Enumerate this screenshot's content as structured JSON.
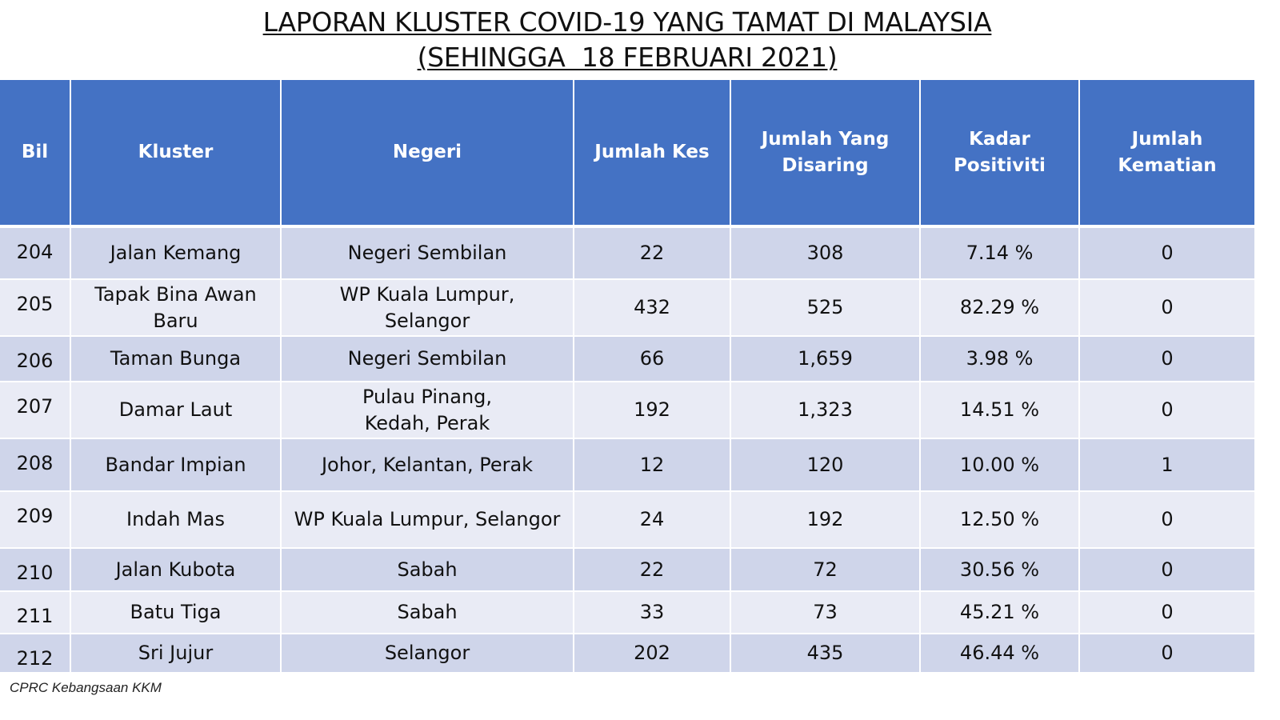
{
  "title": {
    "line1": "LAPORAN KLUSTER COVID-19 YANG TAMAT DI MALAYSIA",
    "line2": "(SEHINGGA  18 FEBRUARI 2021)"
  },
  "table": {
    "headers": {
      "bil": "Bil",
      "kluster": "Kluster",
      "negeri": "Negeri",
      "jumlah_kes": "Jumlah Kes",
      "jumlah_disaring_1": "Jumlah Yang",
      "jumlah_disaring_2": "Disaring",
      "kadar_positiviti": "Kadar Positiviti",
      "jumlah_kematian": "Jumlah Kematian"
    },
    "rows": [
      {
        "bil": "204",
        "kluster": "Jalan Kemang",
        "negeri_1": "Negeri Sembilan",
        "negeri_2": "",
        "kes": "22",
        "disaring": "308",
        "positiviti": "7.14 %",
        "kematian": "0"
      },
      {
        "bil": "205",
        "kluster": "Tapak Bina Awan Baru",
        "negeri_1": "WP Kuala Lumpur,",
        "negeri_2": "Selangor",
        "kes": "432",
        "disaring": "525",
        "positiviti": "82.29 %",
        "kematian": "0"
      },
      {
        "bil": "206",
        "kluster": "Taman Bunga",
        "negeri_1": "Negeri Sembilan",
        "negeri_2": "",
        "kes": "66",
        "disaring": "1,659",
        "positiviti": "3.98 %",
        "kematian": "0"
      },
      {
        "bil": "207",
        "kluster": "Damar Laut",
        "negeri_1": "Pulau Pinang,",
        "negeri_2": "Kedah, Perak",
        "kes": "192",
        "disaring": "1,323",
        "positiviti": "14.51 %",
        "kematian": "0"
      },
      {
        "bil": "208",
        "kluster": "Bandar Impian",
        "negeri_1": "Johor, Kelantan, Perak",
        "negeri_2": "",
        "kes": "12",
        "disaring": "120",
        "positiviti": "10.00 %",
        "kematian": "1"
      },
      {
        "bil": "209",
        "kluster": "Indah Mas",
        "negeri_1": "WP Kuala Lumpur, Selangor",
        "negeri_2": "",
        "kes": "24",
        "disaring": "192",
        "positiviti": "12.50 %",
        "kematian": "0"
      },
      {
        "bil": "210",
        "kluster": "Jalan Kubota",
        "negeri_1": "Sabah",
        "negeri_2": "",
        "kes": "22",
        "disaring": "72",
        "positiviti": "30.56 %",
        "kematian": "0"
      },
      {
        "bil": "211",
        "kluster": "Batu Tiga",
        "negeri_1": "Sabah",
        "negeri_2": "",
        "kes": "33",
        "disaring": "73",
        "positiviti": "45.21 %",
        "kematian": "0"
      },
      {
        "bil": "212",
        "kluster": "Sri Jujur",
        "negeri_1": "Selangor",
        "negeri_2": "",
        "kes": "202",
        "disaring": "435",
        "positiviti": "46.44 %",
        "kematian": "0"
      }
    ]
  },
  "footer": "CPRC Kebangsaan KKM",
  "colors": {
    "header_bg": "#4472c4",
    "row_dark": "#cfd5ea",
    "row_light": "#e9ebf5"
  }
}
